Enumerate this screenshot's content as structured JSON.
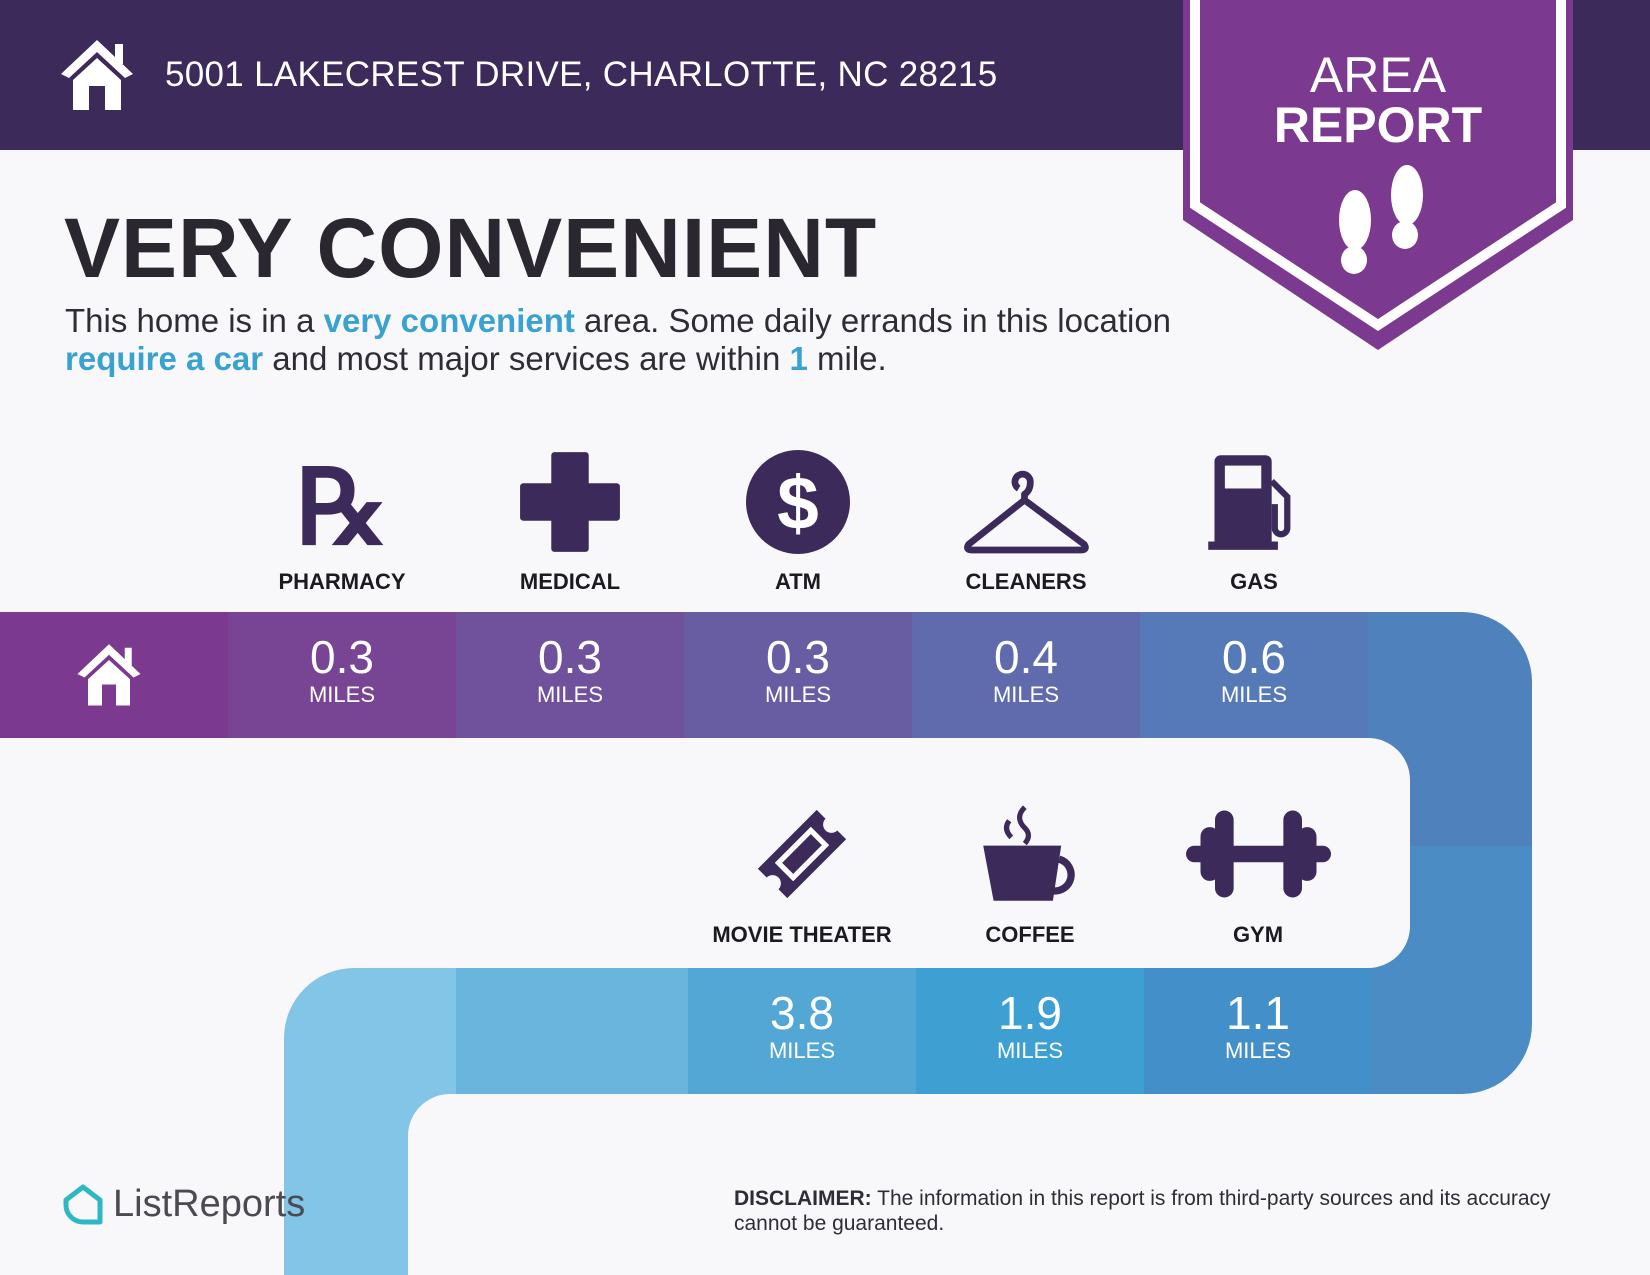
{
  "header": {
    "address": "5001 LAKECREST DRIVE, CHARLOTTE, NC 28215",
    "icon": "home-icon",
    "bg_color": "#3c2a5a"
  },
  "badge": {
    "line1": "AREA",
    "line2": "REPORT",
    "icon": "footprints-icon",
    "color": "#7b3a8f"
  },
  "rating": {
    "title": "VERY CONVENIENT",
    "desc": {
      "p1": "This home is in a ",
      "h1": "very convenient",
      "p2": " area. Some daily errands in this location ",
      "h2": "require a car",
      "p3": " and most major services are within ",
      "h3": "1",
      "p4": " mile."
    }
  },
  "row1": [
    {
      "label": "PHARMACY",
      "value": "0.3",
      "unit": "MILES",
      "icon": "rx-icon",
      "color": "#774594"
    },
    {
      "label": "MEDICAL",
      "value": "0.3",
      "unit": "MILES",
      "icon": "medical-cross-icon",
      "color": "#70519b"
    },
    {
      "label": "ATM",
      "value": "0.3",
      "unit": "MILES",
      "icon": "dollar-icon",
      "color": "#685ca3"
    },
    {
      "label": "CLEANERS",
      "value": "0.4",
      "unit": "MILES",
      "icon": "hanger-icon",
      "color": "#5f6bac"
    },
    {
      "label": "GAS",
      "value": "0.6",
      "unit": "MILES",
      "icon": "gas-pump-icon",
      "color": "#557ab7"
    }
  ],
  "row2": [
    {
      "label": "MOVIE THEATER",
      "value": "3.8",
      "unit": "MILES",
      "icon": "ticket-icon",
      "color": "#52a7d5"
    },
    {
      "label": "COFFEE",
      "value": "1.9",
      "unit": "MILES",
      "icon": "coffee-icon",
      "color": "#3d9fd2"
    },
    {
      "label": "GYM",
      "value": "1.1",
      "unit": "MILES",
      "icon": "dumbbell-icon",
      "color": "#438fc9"
    }
  ],
  "footer": {
    "logo": "ListReports",
    "disclaimer_label": "DISCLAIMER:",
    "disclaimer_text": " The information in this report is from third-party sources and its accuracy cannot be guaranteed."
  }
}
